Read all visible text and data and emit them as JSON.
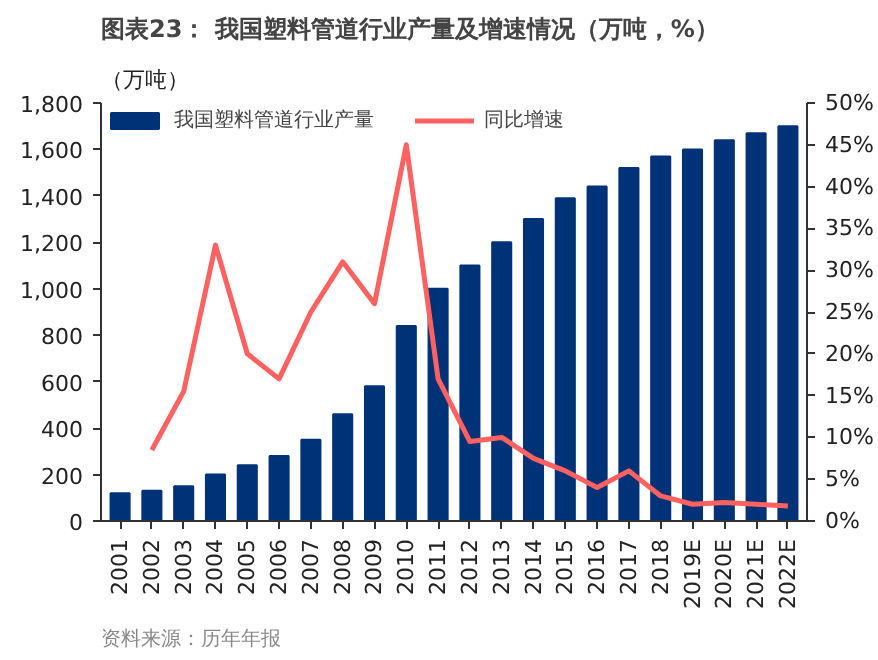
{
  "chart_data": {
    "type": "bar",
    "title": "图表23：  我国塑料管道行业产量及增速情况（万吨，%）",
    "ylabel": "（万吨）",
    "categories": [
      "2001",
      "2002",
      "2003",
      "2004",
      "2005",
      "2006",
      "2007",
      "2008",
      "2009",
      "2010",
      "2011",
      "2012",
      "2013",
      "2014",
      "2015",
      "2016",
      "2017",
      "2018",
      "2019E",
      "2020E",
      "2021E",
      "2022E"
    ],
    "series": [
      {
        "name": "我国塑料管道行业产量",
        "color": "#003278",
        "values": [
          120,
          130,
          150,
          200,
          240,
          280,
          350,
          460,
          580,
          840,
          1000,
          1100,
          1200,
          1300,
          1390,
          1440,
          1520,
          1570,
          1600,
          1640,
          1670,
          1700
        ]
      },
      {
        "name": "同比增速",
        "type": "line",
        "axis": "y2",
        "color": "#ff6060",
        "values": [
          null,
          8.5,
          15.5,
          33,
          20,
          17,
          25,
          31,
          26,
          45,
          17,
          9.5,
          10,
          7.5,
          6,
          4,
          6,
          3,
          2,
          2.2,
          2,
          1.8
        ]
      }
    ],
    "ylim": [
      0,
      1800
    ],
    "yticks": [
      {
        "value": 0,
        "label": "0"
      },
      {
        "value": 200,
        "label": "200"
      },
      {
        "value": 400,
        "label": "400"
      },
      {
        "value": 600,
        "label": "600"
      },
      {
        "value": 800,
        "label": "800"
      },
      {
        "value": 1000,
        "label": "1,000"
      },
      {
        "value": 1200,
        "label": "1,200"
      },
      {
        "value": 1400,
        "label": "1,400"
      },
      {
        "value": 1600,
        "label": "1,600"
      },
      {
        "value": 1800,
        "label": "1,800"
      }
    ],
    "y2lim": [
      0,
      50
    ],
    "y2ticks": [
      {
        "value": 0,
        "label": "0%"
      },
      {
        "value": 5,
        "label": "5%"
      },
      {
        "value": 10,
        "label": "10%"
      },
      {
        "value": 15,
        "label": "15%"
      },
      {
        "value": 20,
        "label": "20%"
      },
      {
        "value": 25,
        "label": "25%"
      },
      {
        "value": 30,
        "label": "30%"
      },
      {
        "value": 35,
        "label": "35%"
      },
      {
        "value": 40,
        "label": "40%"
      },
      {
        "value": 45,
        "label": "45%"
      },
      {
        "value": 50,
        "label": "50%"
      }
    ],
    "grid": false,
    "legend": "top left",
    "line_style": "solid",
    "annotations": [
      "资料来源：历年年报"
    ]
  }
}
